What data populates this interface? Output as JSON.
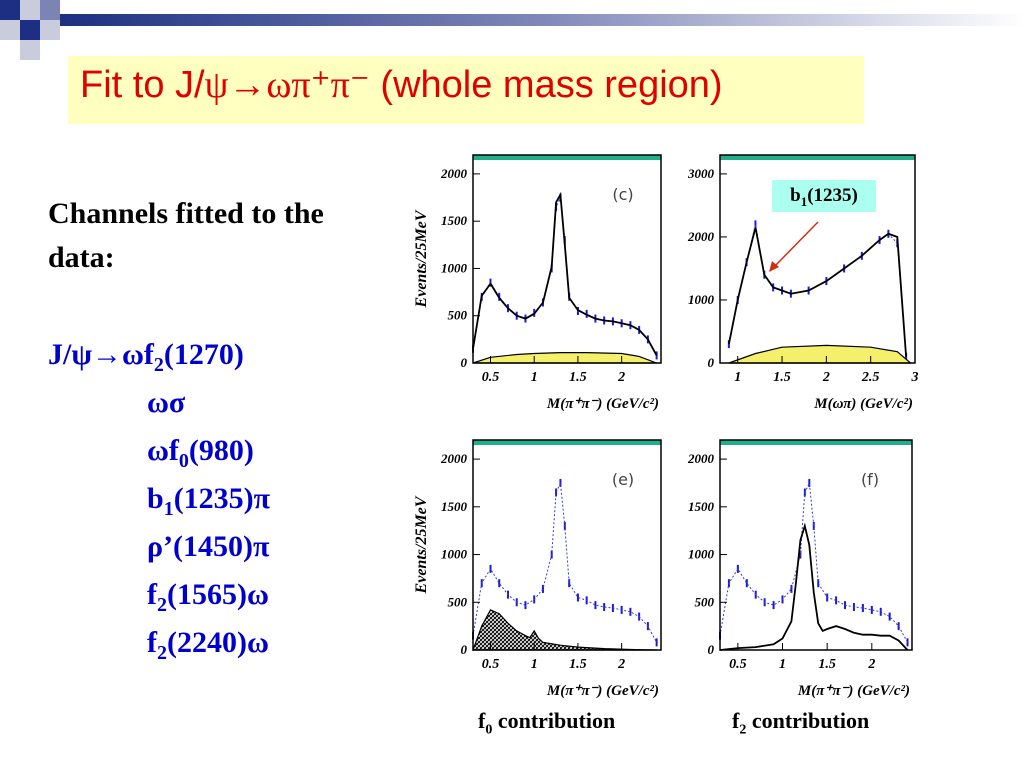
{
  "slide": {
    "title_prefix": "Fit to J/",
    "title_formula": "ψ→ωπ⁺π⁻",
    "title_suffix": " (whole mass region)",
    "left_heading": "Channels fitted to the data:",
    "channels": [
      {
        "text": "J/ψ→ωf",
        "sub": "2",
        "tail": "(1270)"
      },
      {
        "text": "ωσ",
        "sub": "",
        "tail": ""
      },
      {
        "text": "ωf",
        "sub": "0",
        "tail": "(980)"
      },
      {
        "text": "b",
        "sub": "1",
        "tail": "(1235)π"
      },
      {
        "text": "ρ’(1450)π",
        "sub": "",
        "tail": ""
      },
      {
        "text": "f",
        "sub": "2",
        "tail": "(1565)ω"
      },
      {
        "text": "f",
        "sub": "2",
        "tail": "(2240)ω"
      }
    ],
    "captions": [
      {
        "main": "f",
        "sub": "0",
        "tail": " contribution"
      },
      {
        "main": "f",
        "sub": "2",
        "tail": " contribution"
      }
    ],
    "annotation": {
      "main": "b",
      "sub": "1",
      "tail": "(1235)"
    }
  },
  "chart_data": [
    {
      "type": "line",
      "panel_label": "(c)",
      "ylabel": "Events/25MeV",
      "xlabel": "M(π⁺π⁻) (GeV/c²)",
      "xlim": [
        0.3,
        2.45
      ],
      "ylim": [
        0,
        2200
      ],
      "xticks": [
        "0.5",
        "1",
        "1.5",
        "2"
      ],
      "yticks": [
        "0",
        "500",
        "1000",
        "1500",
        "2000"
      ],
      "series": [
        {
          "style": "data-points",
          "x": [
            0.3,
            0.4,
            0.5,
            0.6,
            0.7,
            0.8,
            0.9,
            1.0,
            1.1,
            1.2,
            1.25,
            1.3,
            1.35,
            1.4,
            1.5,
            1.6,
            1.7,
            1.8,
            1.9,
            2.0,
            2.1,
            2.2,
            2.3,
            2.4
          ],
          "y": [
            150,
            700,
            850,
            700,
            580,
            500,
            470,
            530,
            640,
            1000,
            1650,
            1750,
            1300,
            700,
            550,
            520,
            470,
            450,
            440,
            420,
            400,
            350,
            250,
            80
          ]
        },
        {
          "style": "fit-line",
          "x": [
            0.3,
            0.4,
            0.5,
            0.6,
            0.7,
            0.8,
            0.9,
            1.0,
            1.1,
            1.2,
            1.25,
            1.3,
            1.35,
            1.4,
            1.5,
            1.6,
            1.7,
            1.8,
            1.9,
            2.0,
            2.1,
            2.2,
            2.3,
            2.4
          ],
          "y": [
            150,
            710,
            840,
            690,
            580,
            500,
            470,
            520,
            640,
            1020,
            1700,
            1780,
            1250,
            690,
            560,
            510,
            470,
            450,
            440,
            420,
            400,
            350,
            250,
            80
          ]
        },
        {
          "style": "background-fill",
          "x": [
            0.3,
            0.5,
            0.8,
            1.0,
            1.3,
            1.6,
            2.0,
            2.2,
            2.4
          ],
          "y": [
            0,
            60,
            90,
            100,
            110,
            110,
            100,
            70,
            0
          ]
        }
      ]
    },
    {
      "type": "line",
      "panel_label": "",
      "ylabel": "",
      "xlabel": "M(ωπ) (GeV/c²)",
      "xlim": [
        0.8,
        3.0
      ],
      "ylim": [
        0,
        3300
      ],
      "xticks": [
        "1",
        "1.5",
        "2",
        "2.5",
        "3"
      ],
      "yticks": [
        "0",
        "1000",
        "2000",
        "3000"
      ],
      "series": [
        {
          "style": "data-points",
          "x": [
            0.9,
            1.0,
            1.1,
            1.2,
            1.3,
            1.4,
            1.5,
            1.6,
            1.8,
            2.0,
            2.2,
            2.4,
            2.6,
            2.7,
            2.8,
            2.9
          ],
          "y": [
            300,
            1000,
            1600,
            2200,
            1400,
            1200,
            1150,
            1100,
            1150,
            1300,
            1500,
            1700,
            1950,
            2050,
            1900,
            100
          ]
        },
        {
          "style": "fit-line",
          "x": [
            0.9,
            1.0,
            1.1,
            1.2,
            1.3,
            1.4,
            1.5,
            1.6,
            1.8,
            2.0,
            2.2,
            2.4,
            2.6,
            2.7,
            2.8,
            2.9
          ],
          "y": [
            300,
            1000,
            1600,
            2150,
            1400,
            1200,
            1150,
            1100,
            1150,
            1300,
            1500,
            1700,
            1950,
            2050,
            2000,
            100
          ]
        },
        {
          "style": "background-fill",
          "x": [
            0.9,
            1.2,
            1.5,
            2.0,
            2.5,
            2.8,
            2.95
          ],
          "y": [
            0,
            150,
            250,
            280,
            250,
            180,
            0
          ]
        }
      ]
    },
    {
      "type": "line",
      "panel_label": "(e)",
      "ylabel": "Events/25MeV",
      "xlabel": "M(π⁺π⁻) (GeV/c²)",
      "xlim": [
        0.3,
        2.45
      ],
      "ylim": [
        0,
        2200
      ],
      "xticks": [
        "0.5",
        "1",
        "1.5",
        "2"
      ],
      "yticks": [
        "0",
        "500",
        "1000",
        "1500",
        "2000"
      ],
      "series": [
        {
          "style": "data-points",
          "x": [
            0.3,
            0.4,
            0.5,
            0.6,
            0.7,
            0.8,
            0.9,
            1.0,
            1.1,
            1.2,
            1.25,
            1.3,
            1.35,
            1.4,
            1.5,
            1.6,
            1.7,
            1.8,
            1.9,
            2.0,
            2.1,
            2.2,
            2.3,
            2.4
          ],
          "y": [
            150,
            700,
            850,
            700,
            580,
            500,
            470,
            530,
            640,
            1000,
            1650,
            1750,
            1300,
            700,
            550,
            520,
            470,
            450,
            440,
            420,
            400,
            350,
            250,
            80
          ]
        },
        {
          "style": "hatched-contribution",
          "x": [
            0.3,
            0.4,
            0.5,
            0.6,
            0.7,
            0.8,
            0.9,
            0.95,
            1.0,
            1.05,
            1.1,
            1.3,
            1.5,
            1.8,
            2.1,
            2.4
          ],
          "y": [
            0,
            250,
            420,
            380,
            280,
            200,
            150,
            130,
            200,
            120,
            80,
            50,
            30,
            15,
            5,
            0
          ]
        }
      ]
    },
    {
      "type": "line",
      "panel_label": "(f)",
      "ylabel": "",
      "xlabel": "M(π⁺π⁻) (GeV/c²)",
      "xlim": [
        0.3,
        2.45
      ],
      "ylim": [
        0,
        2200
      ],
      "xticks": [
        "0.5",
        "1",
        "1.5",
        "2"
      ],
      "yticks": [
        "0",
        "500",
        "1000",
        "1500",
        "2000"
      ],
      "series": [
        {
          "style": "data-points",
          "x": [
            0.3,
            0.4,
            0.5,
            0.6,
            0.7,
            0.8,
            0.9,
            1.0,
            1.1,
            1.2,
            1.25,
            1.3,
            1.35,
            1.4,
            1.5,
            1.6,
            1.7,
            1.8,
            1.9,
            2.0,
            2.1,
            2.2,
            2.3,
            2.4
          ],
          "y": [
            150,
            700,
            850,
            700,
            580,
            500,
            470,
            530,
            640,
            1000,
            1650,
            1750,
            1300,
            700,
            550,
            520,
            470,
            450,
            440,
            420,
            400,
            350,
            250,
            80
          ]
        },
        {
          "style": "contribution-line",
          "x": [
            0.3,
            0.5,
            0.7,
            0.9,
            1.0,
            1.1,
            1.15,
            1.2,
            1.25,
            1.3,
            1.35,
            1.4,
            1.45,
            1.5,
            1.6,
            1.7,
            1.8,
            1.9,
            2.0,
            2.1,
            2.2,
            2.3,
            2.4
          ],
          "y": [
            0,
            20,
            30,
            60,
            120,
            300,
            700,
            1150,
            1300,
            1100,
            600,
            280,
            200,
            220,
            250,
            220,
            180,
            160,
            160,
            150,
            150,
            100,
            0
          ]
        }
      ]
    }
  ]
}
